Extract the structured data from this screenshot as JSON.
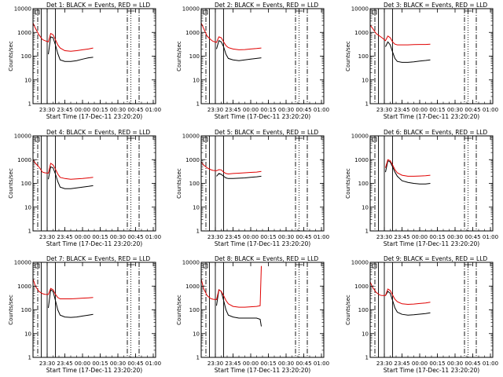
{
  "common": {
    "ylabel": "Counts/sec",
    "xlabel": "Start Time (17-Dec-11 23:20:20)",
    "x_tick_labels": [
      "23:30",
      "23:45",
      "00:00",
      "00:15",
      "00:30",
      "00:45",
      "01:00"
    ],
    "y_tick_labels": [
      "1",
      "10",
      "100",
      "1000",
      "10000"
    ],
    "y_scale": "log",
    "ylim": [
      1,
      10000
    ],
    "xlim_minutes_after_2320": [
      -2,
      102
    ],
    "colors": {
      "events": "#000000",
      "lld": "#e00000"
    }
  },
  "chart_data": [
    {
      "type": "line",
      "title": "Det 1: BLACK = Events, RED = LLD",
      "x_minutes": [
        -2,
        0,
        3,
        6,
        8,
        11,
        13,
        15,
        17,
        19,
        21,
        25,
        30,
        35,
        40,
        45,
        49
      ],
      "series": [
        {
          "name": "Events",
          "values": [
            null,
            null,
            null,
            null,
            null,
            120,
            650,
            600,
            300,
            130,
            70,
            60,
            60,
            65,
            75,
            85,
            90
          ]
        },
        {
          "name": "LLD",
          "values": [
            2500,
            1500,
            800,
            500,
            450,
            400,
            900,
            800,
            500,
            300,
            220,
            170,
            160,
            170,
            185,
            200,
            220
          ]
        }
      ],
      "vlines": [
        {
          "x": 2,
          "style": "dashdot"
        },
        {
          "x": 5,
          "style": "solid"
        },
        {
          "x": 10,
          "style": "solid"
        },
        {
          "x": 17,
          "style": "solid"
        },
        {
          "x": 78,
          "style": "dashdot"
        },
        {
          "x": 81,
          "style": "dotted"
        },
        {
          "x": 88,
          "style": "dashdot"
        }
      ]
    },
    {
      "type": "line",
      "title": "Det 2: BLACK = Events, RED = LLD",
      "x_minutes": [
        -2,
        0,
        3,
        6,
        8,
        11,
        13,
        15,
        17,
        19,
        21,
        25,
        30,
        35,
        40,
        45,
        49
      ],
      "series": [
        {
          "name": "Events",
          "values": [
            null,
            null,
            null,
            null,
            null,
            200,
            450,
            400,
            250,
            120,
            80,
            70,
            65,
            70,
            75,
            80,
            85
          ]
        },
        {
          "name": "LLD",
          "values": [
            2500,
            1500,
            700,
            500,
            420,
            380,
            650,
            600,
            400,
            280,
            230,
            200,
            185,
            190,
            200,
            210,
            220
          ]
        }
      ],
      "vlines": [
        {
          "x": 2,
          "style": "dashdot"
        },
        {
          "x": 5,
          "style": "solid"
        },
        {
          "x": 10,
          "style": "solid"
        },
        {
          "x": 17,
          "style": "solid"
        },
        {
          "x": 78,
          "style": "dashdot"
        },
        {
          "x": 81,
          "style": "dotted"
        },
        {
          "x": 88,
          "style": "dashdot"
        }
      ]
    },
    {
      "type": "line",
      "title": "Det 3: BLACK = Events, RED = LLD",
      "x_minutes": [
        -2,
        0,
        3,
        6,
        8,
        11,
        13,
        15,
        17,
        19,
        21,
        25,
        30,
        35,
        40,
        45,
        49
      ],
      "series": [
        {
          "name": "Events",
          "values": [
            null,
            null,
            null,
            null,
            null,
            250,
            400,
            300,
            150,
            80,
            60,
            55,
            55,
            58,
            62,
            66,
            70
          ]
        },
        {
          "name": "LLD",
          "values": [
            2000,
            1500,
            900,
            700,
            600,
            450,
            700,
            600,
            400,
            320,
            300,
            300,
            300,
            305,
            310,
            310,
            320
          ]
        }
      ],
      "vlines": [
        {
          "x": 2,
          "style": "dashdot"
        },
        {
          "x": 5,
          "style": "solid"
        },
        {
          "x": 10,
          "style": "solid"
        },
        {
          "x": 17,
          "style": "solid"
        },
        {
          "x": 78,
          "style": "dashdot"
        },
        {
          "x": 81,
          "style": "dotted"
        },
        {
          "x": 88,
          "style": "dashdot"
        }
      ]
    },
    {
      "type": "line",
      "title": "Det 4: BLACK = Events, RED = LLD",
      "x_minutes": [
        -2,
        0,
        3,
        6,
        8,
        11,
        13,
        15,
        17,
        19,
        21,
        25,
        30,
        35,
        40,
        45,
        49
      ],
      "series": [
        {
          "name": "Events",
          "values": [
            null,
            null,
            null,
            null,
            null,
            150,
            500,
            450,
            250,
            120,
            70,
            60,
            60,
            65,
            70,
            75,
            80
          ]
        },
        {
          "name": "LLD",
          "values": [
            1000,
            700,
            500,
            300,
            280,
            270,
            700,
            600,
            400,
            250,
            180,
            160,
            150,
            155,
            160,
            170,
            180
          ]
        }
      ],
      "vlines": [
        {
          "x": 2,
          "style": "dashdot"
        },
        {
          "x": 5,
          "style": "solid"
        },
        {
          "x": 10,
          "style": "solid"
        },
        {
          "x": 17,
          "style": "solid"
        },
        {
          "x": 78,
          "style": "dashdot"
        },
        {
          "x": 81,
          "style": "dotted"
        },
        {
          "x": 88,
          "style": "dashdot"
        }
      ]
    },
    {
      "type": "line",
      "title": "Det 5: BLACK = Events, RED = LLD",
      "x_minutes": [
        -2,
        0,
        3,
        6,
        8,
        11,
        13,
        15,
        17,
        19,
        21,
        25,
        30,
        35,
        40,
        45,
        49
      ],
      "series": [
        {
          "name": "Events",
          "values": [
            null,
            null,
            null,
            null,
            null,
            200,
            260,
            240,
            200,
            170,
            160,
            160,
            165,
            170,
            180,
            190,
            200
          ]
        },
        {
          "name": "LLD",
          "values": [
            800,
            600,
            450,
            380,
            350,
            340,
            380,
            370,
            300,
            260,
            250,
            260,
            270,
            280,
            290,
            300,
            320
          ]
        }
      ],
      "vlines": [
        {
          "x": 2,
          "style": "dashdot"
        },
        {
          "x": 5,
          "style": "solid"
        },
        {
          "x": 10,
          "style": "solid"
        },
        {
          "x": 17,
          "style": "solid"
        },
        {
          "x": 78,
          "style": "dashdot"
        },
        {
          "x": 81,
          "style": "dotted"
        },
        {
          "x": 88,
          "style": "dashdot"
        }
      ]
    },
    {
      "type": "line",
      "title": "Det 6: BLACK = Events, RED = LLD",
      "x_minutes": [
        -2,
        0,
        3,
        6,
        8,
        11,
        13,
        15,
        17,
        19,
        21,
        25,
        30,
        35,
        40,
        45,
        49
      ],
      "series": [
        {
          "name": "Events",
          "values": [
            null,
            null,
            null,
            null,
            null,
            300,
            900,
            800,
            500,
            300,
            200,
            130,
            110,
            100,
            95,
            95,
            100
          ]
        },
        {
          "name": "LLD",
          "values": [
            null,
            null,
            null,
            null,
            null,
            450,
            1000,
            900,
            600,
            380,
            280,
            220,
            200,
            200,
            205,
            210,
            220
          ]
        }
      ],
      "vlines": [
        {
          "x": 2,
          "style": "dashdot"
        },
        {
          "x": 5,
          "style": "solid"
        },
        {
          "x": 10,
          "style": "solid"
        },
        {
          "x": 17,
          "style": "solid"
        },
        {
          "x": 78,
          "style": "dashdot"
        },
        {
          "x": 81,
          "style": "dotted"
        },
        {
          "x": 88,
          "style": "dashdot"
        }
      ]
    },
    {
      "type": "line",
      "title": "Det 7: BLACK = Events, RED = LLD",
      "x_minutes": [
        -2,
        0,
        3,
        6,
        8,
        11,
        13,
        15,
        17,
        19,
        21,
        25,
        30,
        35,
        40,
        45,
        49
      ],
      "series": [
        {
          "name": "Events",
          "values": [
            null,
            null,
            null,
            null,
            null,
            120,
            700,
            600,
            250,
            100,
            60,
            50,
            48,
            50,
            55,
            60,
            65
          ]
        },
        {
          "name": "LLD",
          "values": [
            2000,
            1000,
            600,
            480,
            450,
            440,
            800,
            700,
            450,
            330,
            290,
            290,
            290,
            300,
            310,
            320,
            330
          ]
        }
      ],
      "vlines": [
        {
          "x": 2,
          "style": "dashdot"
        },
        {
          "x": 5,
          "style": "solid"
        },
        {
          "x": 10,
          "style": "solid"
        },
        {
          "x": 17,
          "style": "solid"
        },
        {
          "x": 78,
          "style": "dashdot"
        },
        {
          "x": 81,
          "style": "dotted"
        },
        {
          "x": 88,
          "style": "dashdot"
        }
      ]
    },
    {
      "type": "line",
      "title": "Det 8: BLACK = Events, RED = LLD",
      "x_minutes": [
        -2,
        0,
        3,
        6,
        8,
        11,
        13,
        15,
        17,
        19,
        21,
        25,
        30,
        35,
        40,
        45,
        48,
        49
      ],
      "series": [
        {
          "name": "Events",
          "values": [
            null,
            null,
            null,
            null,
            null,
            150,
            700,
            600,
            250,
            100,
            60,
            50,
            45,
            45,
            45,
            45,
            40,
            20
          ]
        },
        {
          "name": "LLD",
          "values": [
            2000,
            800,
            400,
            300,
            280,
            270,
            700,
            600,
            400,
            250,
            180,
            140,
            130,
            130,
            135,
            140,
            150,
            7000
          ]
        }
      ],
      "vlines": [
        {
          "x": 2,
          "style": "dashdot"
        },
        {
          "x": 5,
          "style": "solid"
        },
        {
          "x": 10,
          "style": "solid"
        },
        {
          "x": 17,
          "style": "solid"
        },
        {
          "x": 78,
          "style": "dashdot"
        },
        {
          "x": 81,
          "style": "dotted"
        },
        {
          "x": 88,
          "style": "dashdot"
        }
      ]
    },
    {
      "type": "line",
      "title": "Det 9: BLACK = Events, RED = LLD",
      "x_minutes": [
        -2,
        0,
        3,
        6,
        8,
        11,
        13,
        15,
        17,
        19,
        21,
        25,
        30,
        35,
        40,
        45,
        49
      ],
      "series": [
        {
          "name": "Events",
          "values": [
            null,
            null,
            null,
            null,
            null,
            400,
            600,
            500,
            250,
            120,
            80,
            65,
            60,
            62,
            66,
            70,
            75
          ]
        },
        {
          "name": "LLD",
          "values": [
            1500,
            900,
            550,
            420,
            400,
            400,
            750,
            650,
            420,
            280,
            220,
            180,
            170,
            175,
            185,
            195,
            210
          ]
        }
      ],
      "vlines": [
        {
          "x": 2,
          "style": "dashdot"
        },
        {
          "x": 5,
          "style": "solid"
        },
        {
          "x": 10,
          "style": "solid"
        },
        {
          "x": 17,
          "style": "solid"
        },
        {
          "x": 78,
          "style": "dashdot"
        },
        {
          "x": 81,
          "style": "dotted"
        },
        {
          "x": 88,
          "style": "dashdot"
        }
      ]
    }
  ]
}
